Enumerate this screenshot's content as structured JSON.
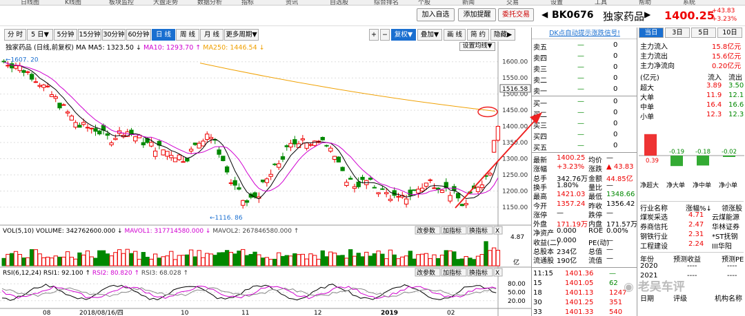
{
  "top_menu": [
    "日线图",
    "K线图",
    "板块监控",
    "大盘走势",
    "数据分析",
    "指标",
    "资讯",
    "自选股",
    "综合排名",
    "个股",
    "新闻",
    "交易",
    "设置",
    "工具",
    "帮助",
    "系统"
  ],
  "header": {
    "add_watch": "加入自选",
    "add_alert": "添加提醒",
    "trade": "委托交易",
    "code": "BK0676",
    "name": "独家药品",
    "price": "1400.25",
    "chg": "+43.83",
    "pct": "+3.23%"
  },
  "toolbar": {
    "periods": [
      "分 时",
      "5 日▼",
      "5分钟",
      "15分钟",
      "30分钟",
      "60分钟",
      "日 线",
      "周 线",
      "月 线",
      "更多周期▼"
    ],
    "selected": 6,
    "tools": [
      "+",
      "−",
      "复权▼",
      "叠加▼",
      "画 线",
      "简 约",
      "隐藏▶"
    ]
  },
  "chart": {
    "legend": "独家药品 (日线,前复权) MA",
    "ma5": "MA5: 1323.50 ↓",
    "ma10": "MA10: 1293.70 ↑",
    "ma250": "MA250: 1446.54 ↓",
    "settings": "设置均线▼",
    "price_axis": [
      "1600.00",
      "1550.00",
      "1500.00",
      "1450.00",
      "1400.00",
      "1350.00",
      "1300.00",
      "1250.00",
      "1200.00",
      "1150.00"
    ],
    "last_label": "1516.58",
    "high_mark": "←1607. 20",
    "low_mark": "←1116. 86",
    "vol_legend": "VOL(5,10) VOLUME: 342762600.000 ↓",
    "mavol1": "MAVOL1: 317714580.000 ↓",
    "mavol2": "MAVOL2: 267846580.000 ↑",
    "vol_axis": "4.87",
    "vol_unit": "亿",
    "rsi_legend": "RSI(6,12,24) RSI1: 92.100 ↑",
    "rsi2": "RSI2: 80.820 ↑",
    "rsi3": "RSI3: 68.028 ↑",
    "rsi_axis": [
      "80.00",
      "50.00",
      "20.00"
    ],
    "sub_btns": [
      "改参数",
      "加指标",
      "换指标",
      "X"
    ],
    "dates": [
      "08",
      "2018/08/16/四",
      "10",
      "11",
      "12",
      "2019",
      "02"
    ]
  },
  "right": {
    "title": "DK点自动提示涨跌信号!",
    "asks": [
      [
        "卖五",
        "—",
        "0"
      ],
      [
        "卖四",
        "—",
        "0"
      ],
      [
        "卖三",
        "—",
        "0"
      ],
      [
        "卖二",
        "—",
        "0"
      ],
      [
        "卖一",
        "—",
        "0"
      ]
    ],
    "bids": [
      [
        "买一",
        "—",
        "0"
      ],
      [
        "买二",
        "—",
        "0"
      ],
      [
        "买三",
        "—",
        "0"
      ],
      [
        "买四",
        "—",
        "0"
      ],
      [
        "买五",
        "—",
        "0"
      ]
    ],
    "stats": [
      [
        "最新",
        "1400.25",
        "均价",
        "—"
      ],
      [
        "涨幅",
        "+3.23%",
        "涨跌",
        "▲ 43.83"
      ],
      [
        "总手",
        "342.76万",
        "金额",
        "44.85亿"
      ],
      [
        "换手",
        "1.80%",
        "量比",
        "—"
      ],
      [
        "最高",
        "1421.03",
        "最低",
        "1348.66"
      ],
      [
        "今开",
        "1357.24",
        "昨收",
        "1356.42"
      ],
      [
        "涨停",
        "—",
        "跌停",
        "—"
      ],
      [
        "外盘",
        "171.19万",
        "内盘",
        "171.57万"
      ],
      [
        "净资产",
        "0.000",
        "ROE",
        "0.00%"
      ],
      [
        "收益(二)",
        "0.000",
        "PE(动)",
        "—"
      ],
      [
        "总股本",
        "234亿",
        "总值",
        "—"
      ],
      [
        "流通股",
        "190亿",
        "流值",
        "—"
      ]
    ],
    "ticks": [
      [
        "11:15",
        "1401.36",
        "—"
      ],
      [
        "15",
        "1401.05",
        "62"
      ],
      [
        "18",
        "1401.13",
        "1247"
      ],
      [
        "30",
        "1401.25",
        "351"
      ],
      [
        "33",
        "1401.33",
        "540"
      ]
    ]
  },
  "flow": {
    "tabs": [
      "当日",
      "3日",
      "5日",
      "10日"
    ],
    "rows": [
      [
        "主力流入",
        "15.8亿元"
      ],
      [
        "主力流出",
        "15.6亿元"
      ],
      [
        "主力净流向",
        "0.20亿元"
      ]
    ],
    "table_head": [
      "(亿元)",
      "流入",
      "流出"
    ],
    "table": [
      [
        "超大",
        "3.89",
        "3.50"
      ],
      [
        "大单",
        "11.9",
        "12.1"
      ],
      [
        "中单",
        "16.4",
        "16.6"
      ],
      [
        "小单",
        "12.3",
        "12.3"
      ]
    ],
    "bars": [
      {
        "label": "净超大",
        "value": 0.39
      },
      {
        "label": "净大单",
        "value": -0.19
      },
      {
        "label": "净中单",
        "value": -0.18
      },
      {
        "label": "净小单",
        "value": -0.02
      }
    ],
    "bar_vals": [
      "0.39",
      "-0.19",
      "-0.18",
      "-0.02"
    ],
    "industry_head": [
      "行业名称",
      "涨幅%↓",
      "领涨股"
    ],
    "industry": [
      [
        "煤炭采选",
        "4.71",
        "云煤能源"
      ],
      [
        "券商信托",
        "2.47",
        "华林证券"
      ],
      [
        "钢铁行业",
        "2.31",
        "*ST抚钢"
      ],
      [
        "工程建设",
        "2.24",
        "III华阳"
      ]
    ],
    "fc_head": [
      "年份",
      "预测收益",
      "预测PE"
    ],
    "fc_rows": [
      "2020",
      "2021"
    ],
    "rating_head": [
      "日期",
      "评级",
      "机构名称"
    ],
    "watermark": "老吴车评"
  },
  "colors": {
    "up": "#e00",
    "down": "#080",
    "ma5": "#000",
    "ma10": "#d000d0",
    "ma250": "#f0a000",
    "accent": "#1a6fd0",
    "annotation": "#e22"
  }
}
